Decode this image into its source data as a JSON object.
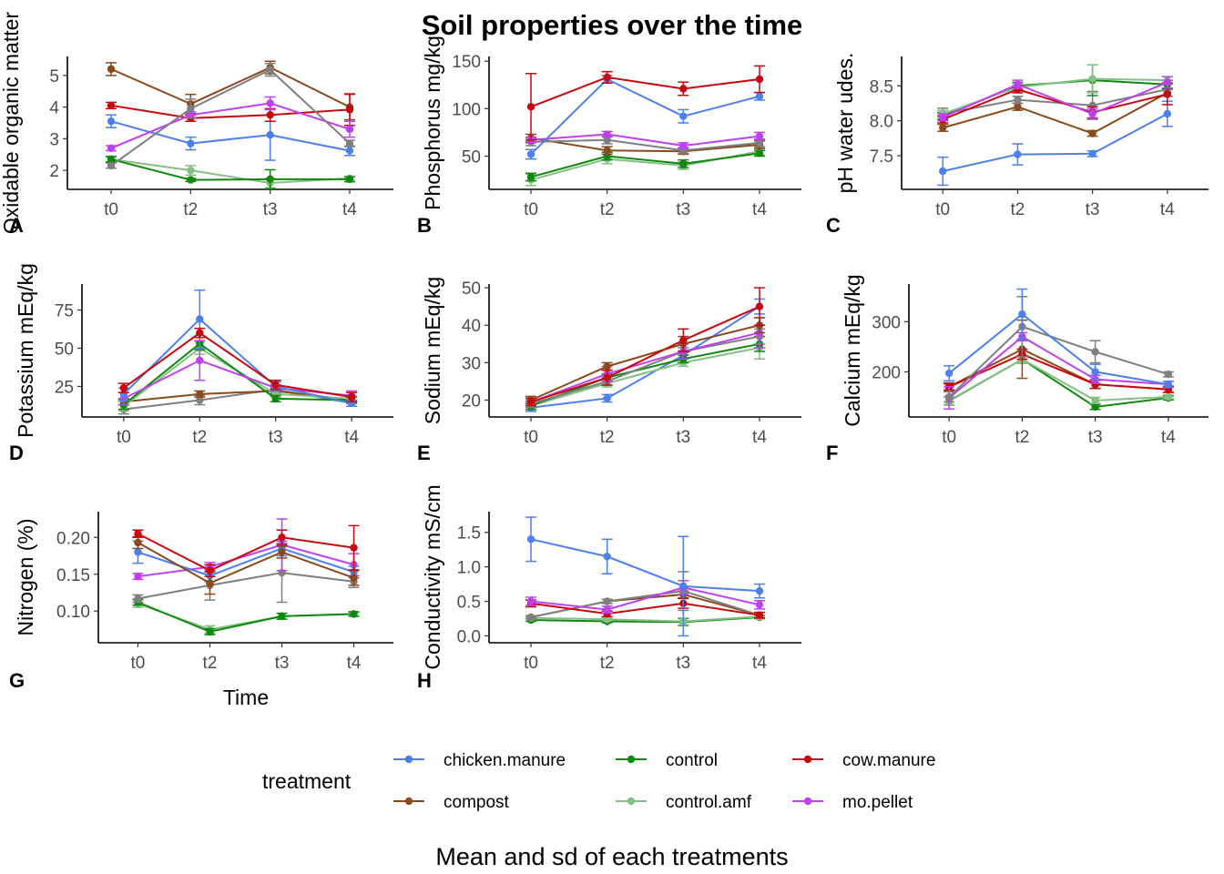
{
  "title": "Soil properties over the time",
  "caption": "Mean and sd of each treatments",
  "legend": {
    "title": "treatment",
    "entries": [
      {
        "name": "chicken.manure",
        "color": "#4c7ff0"
      },
      {
        "name": "control",
        "color": "#0f8a0f"
      },
      {
        "name": "cow.manure",
        "color": "#c8080f"
      },
      {
        "name": "compost",
        "color": "#8b4a1c"
      },
      {
        "name": "control.amf",
        "color": "#86bf86"
      },
      {
        "name": "mo.pellet",
        "color": "#bf40f2"
      }
    ]
  },
  "chart_data": [
    {
      "type": "line",
      "tag": "A",
      "ylabel": "Oxidable organic matter",
      "xlabel": "",
      "categories": [
        "t0",
        "t2",
        "t3",
        "t4"
      ],
      "ylim": [
        1.4,
        5.6
      ],
      "yticks": [
        2,
        3,
        4,
        5
      ],
      "series": [
        {
          "name": "compost",
          "values": [
            5.2,
            4.1,
            5.25,
            4.0
          ],
          "sd": [
            0.2,
            0.3,
            0.2,
            0.4
          ]
        },
        {
          "name": "control.amf",
          "values": [
            2.35,
            2.0,
            1.6,
            1.75
          ],
          "sd": [
            0.1,
            0.15,
            0.15,
            0.05
          ]
        },
        {
          "name": "control",
          "values": [
            2.35,
            1.7,
            1.72,
            1.72
          ],
          "sd": [
            0.08,
            0.05,
            0.3,
            0.08
          ]
        },
        {
          "name": "chicken.manure",
          "values": [
            3.55,
            2.85,
            3.12,
            2.62
          ],
          "sd": [
            0.2,
            0.2,
            0.8,
            0.15
          ]
        },
        {
          "name": "cow.manure",
          "values": [
            4.05,
            3.65,
            3.75,
            3.92
          ],
          "sd": [
            0.1,
            0.1,
            0.2,
            0.5
          ]
        },
        {
          "name": "mo.pellet",
          "values": [
            2.7,
            3.75,
            4.12,
            3.3
          ],
          "sd": [
            0.08,
            0.1,
            0.2,
            0.25
          ]
        },
        {
          "name": "",
          "values": [
            2.15,
            3.95,
            5.18,
            2.85
          ],
          "sd": [
            0.08,
            0.3,
            0.2,
            0.1
          ]
        }
      ]
    },
    {
      "type": "line",
      "tag": "B",
      "ylabel": "Phosphorus mg/kg",
      "xlabel": "",
      "categories": [
        "t0",
        "t2",
        "t3",
        "t4"
      ],
      "ylim": [
        15,
        155
      ],
      "yticks": [
        50,
        100,
        150
      ],
      "series": [
        {
          "name": "control.amf",
          "values": [
            25,
            47,
            40,
            55
          ],
          "sd": [
            6,
            5,
            4,
            4
          ]
        },
        {
          "name": "control",
          "values": [
            28,
            50,
            42,
            53
          ],
          "sd": [
            4,
            4,
            4,
            3
          ]
        },
        {
          "name": "compost",
          "values": [
            69,
            56,
            55,
            62
          ],
          "sd": [
            4,
            4,
            3,
            4
          ]
        },
        {
          "name": "",
          "values": [
            65,
            67,
            56,
            64
          ],
          "sd": [
            4,
            4,
            3,
            4
          ]
        },
        {
          "name": "mo.pellet",
          "values": [
            67,
            73,
            61,
            71
          ],
          "sd": [
            3,
            3,
            3,
            4
          ]
        },
        {
          "name": "chicken.manure",
          "values": [
            52,
            131,
            92,
            113
          ],
          "sd": [
            5,
            4,
            7,
            4
          ]
        },
        {
          "name": "cow.manure",
          "values": [
            102,
            133,
            121,
            131
          ],
          "sd": [
            35,
            6,
            7,
            14
          ]
        }
      ]
    },
    {
      "type": "line",
      "tag": "C",
      "ylabel": "pH water udes.",
      "xlabel": "",
      "categories": [
        "t0",
        "t2",
        "t3",
        "t4"
      ],
      "ylim": [
        7.02,
        8.92
      ],
      "yticks": [
        7.5,
        8.0,
        8.5
      ],
      "series": [
        {
          "name": "chicken.manure",
          "values": [
            7.28,
            7.52,
            7.53,
            8.1
          ],
          "sd": [
            0.2,
            0.15,
            0.04,
            0.18
          ]
        },
        {
          "name": "compost",
          "values": [
            7.9,
            8.2,
            7.82,
            8.4
          ],
          "sd": [
            0.05,
            0.05,
            0.04,
            0.05
          ]
        },
        {
          "name": "",
          "values": [
            8.1,
            8.3,
            8.22,
            8.45
          ],
          "sd": [
            0.08,
            0.05,
            0.2,
            0.1
          ]
        },
        {
          "name": "control",
          "values": [
            8.07,
            8.5,
            8.58,
            8.52
          ],
          "sd": [
            0.05,
            0.05,
            0.22,
            0.06
          ]
        },
        {
          "name": "control.amf",
          "values": [
            8.1,
            8.48,
            8.6,
            8.58
          ],
          "sd": [
            0.05,
            0.05,
            0.2,
            0.05
          ]
        },
        {
          "name": "cow.manure",
          "values": [
            8.02,
            8.45,
            8.12,
            8.38
          ],
          "sd": [
            0.05,
            0.05,
            0.08,
            0.15
          ]
        },
        {
          "name": "mo.pellet",
          "values": [
            8.05,
            8.52,
            8.1,
            8.55
          ],
          "sd": [
            0.05,
            0.06,
            0.07,
            0.08
          ]
        }
      ]
    },
    {
      "type": "line",
      "tag": "D",
      "ylabel": "Potassium mEq/kg",
      "xlabel": "",
      "categories": [
        "t0",
        "t2",
        "t3",
        "t4"
      ],
      "ylim": [
        5,
        92
      ],
      "yticks": [
        25,
        50,
        75
      ],
      "series": [
        {
          "name": "",
          "values": [
            10,
            16,
            23,
            14
          ],
          "sd": [
            3,
            3,
            2,
            2
          ]
        },
        {
          "name": "compost",
          "values": [
            15,
            20,
            22,
            16
          ],
          "sd": [
            2,
            2,
            2,
            2
          ]
        },
        {
          "name": "control.amf",
          "values": [
            12,
            50,
            20,
            17
          ],
          "sd": [
            3,
            4,
            2,
            2
          ]
        },
        {
          "name": "control",
          "values": [
            13,
            53,
            17,
            16
          ],
          "sd": [
            3,
            4,
            2,
            2
          ]
        },
        {
          "name": "mo.pellet",
          "values": [
            17,
            42,
            24,
            19
          ],
          "sd": [
            4,
            13,
            2,
            3
          ]
        },
        {
          "name": "chicken.manure",
          "values": [
            20,
            69,
            25,
            14
          ],
          "sd": [
            4,
            19,
            3,
            2
          ]
        },
        {
          "name": "cow.manure",
          "values": [
            24,
            60,
            26,
            18
          ],
          "sd": [
            3,
            3,
            3,
            3
          ]
        }
      ]
    },
    {
      "type": "line",
      "tag": "E",
      "ylabel": "Sodium mEq/kg",
      "xlabel": "",
      "categories": [
        "t0",
        "t2",
        "t3",
        "t4"
      ],
      "ylim": [
        15.5,
        51
      ],
      "yticks": [
        20,
        30,
        40,
        50
      ],
      "series": [
        {
          "name": "chicken.manure",
          "values": [
            18,
            20.5,
            32,
            45
          ],
          "sd": [
            1,
            1,
            2,
            2
          ]
        },
        {
          "name": "control.amf",
          "values": [
            18.5,
            24.5,
            30,
            34
          ],
          "sd": [
            1,
            1,
            1,
            3
          ]
        },
        {
          "name": "control",
          "values": [
            18.5,
            26,
            31,
            35
          ],
          "sd": [
            1,
            1,
            1,
            2
          ]
        },
        {
          "name": "",
          "values": [
            19,
            25,
            33,
            37
          ],
          "sd": [
            1,
            1,
            2,
            2
          ]
        },
        {
          "name": "mo.pellet",
          "values": [
            19.5,
            27,
            33,
            38
          ],
          "sd": [
            1,
            2,
            2,
            4
          ]
        },
        {
          "name": "compost",
          "values": [
            20,
            29,
            35,
            40
          ],
          "sd": [
            1,
            1,
            2,
            2
          ]
        },
        {
          "name": "cow.manure",
          "values": [
            19.5,
            26,
            36,
            45
          ],
          "sd": [
            1,
            2,
            3,
            5
          ]
        }
      ]
    },
    {
      "type": "line",
      "tag": "F",
      "ylabel": "Calcium mEq/kg",
      "xlabel": "",
      "categories": [
        "t0",
        "t2",
        "t3",
        "t4"
      ],
      "ylim": [
        110,
        375
      ],
      "yticks": [
        200,
        300
      ],
      "series": [
        {
          "name": "control",
          "values": [
            142,
            225,
            130,
            148
          ],
          "sd": [
            8,
            8,
            5,
            4
          ]
        },
        {
          "name": "control.amf",
          "values": [
            143,
            225,
            143,
            150
          ],
          "sd": [
            8,
            8,
            6,
            4
          ]
        },
        {
          "name": "compost",
          "values": [
            170,
            245,
            175,
            165
          ],
          "sd": [
            8,
            58,
            8,
            6
          ]
        },
        {
          "name": "cow.manure",
          "values": [
            170,
            235,
            175,
            165
          ],
          "sd": [
            6,
            10,
            8,
            6
          ]
        },
        {
          "name": "mo.pellet",
          "values": [
            148,
            270,
            185,
            175
          ],
          "sd": [
            22,
            8,
            8,
            6
          ]
        },
        {
          "name": "",
          "values": [
            150,
            290,
            240,
            195
          ],
          "sd": [
            10,
            60,
            22,
            5
          ]
        },
        {
          "name": "chicken.manure",
          "values": [
            197,
            315,
            200,
            175
          ],
          "sd": [
            15,
            50,
            15,
            6
          ]
        }
      ]
    },
    {
      "type": "line",
      "tag": "G",
      "ylabel": "Nitrogen (%)",
      "xlabel": "Time",
      "categories": [
        "t0",
        "t2",
        "t3",
        "t4"
      ],
      "ylim": [
        0.057,
        0.235
      ],
      "yticks": [
        0.1,
        0.15,
        0.2
      ],
      "series": [
        {
          "name": "control.amf",
          "values": [
            0.11,
            0.075,
            0.093,
            0.096
          ],
          "sd": [
            0.005,
            0.005,
            0.004,
            0.003
          ]
        },
        {
          "name": "control",
          "values": [
            0.112,
            0.072,
            0.093,
            0.096
          ],
          "sd": [
            0.004,
            0.004,
            0.004,
            0.003
          ]
        },
        {
          "name": "",
          "values": [
            0.117,
            0.135,
            0.152,
            0.14
          ],
          "sd": [
            0.005,
            0.02,
            0.04,
            0.008
          ]
        },
        {
          "name": "mo.pellet",
          "values": [
            0.147,
            0.16,
            0.19,
            0.163
          ],
          "sd": [
            0.004,
            0.006,
            0.035,
            0.015
          ]
        },
        {
          "name": "chicken.manure",
          "values": [
            0.18,
            0.148,
            0.185,
            0.153
          ],
          "sd": [
            0.015,
            0.008,
            0.01,
            0.008
          ]
        },
        {
          "name": "compost",
          "values": [
            0.193,
            0.138,
            0.18,
            0.145
          ],
          "sd": [
            0.008,
            0.015,
            0.008,
            0.01
          ]
        },
        {
          "name": "cow.manure",
          "values": [
            0.205,
            0.155,
            0.2,
            0.186
          ],
          "sd": [
            0.005,
            0.008,
            0.01,
            0.03
          ]
        }
      ]
    },
    {
      "type": "line",
      "tag": "H",
      "ylabel": "Conductivity mS/cm",
      "xlabel": "",
      "categories": [
        "t0",
        "t2",
        "t3",
        "t4"
      ],
      "ylim": [
        -0.1,
        1.8
      ],
      "yticks": [
        0.0,
        0.5,
        1.0,
        1.5
      ],
      "series": [
        {
          "name": "control",
          "values": [
            0.23,
            0.21,
            0.2,
            0.27
          ],
          "sd": [
            0.02,
            0.02,
            0.05,
            0.02
          ]
        },
        {
          "name": "control.amf",
          "values": [
            0.26,
            0.24,
            0.21,
            0.28
          ],
          "sd": [
            0.02,
            0.02,
            0.05,
            0.02
          ]
        },
        {
          "name": "compost",
          "values": [
            0.27,
            0.5,
            0.6,
            0.3
          ],
          "sd": [
            0.02,
            0.03,
            0.05,
            0.04
          ]
        },
        {
          "name": "",
          "values": [
            0.27,
            0.5,
            0.65,
            0.3
          ],
          "sd": [
            0.02,
            0.03,
            0.28,
            0.04
          ]
        },
        {
          "name": "cow.manure",
          "values": [
            0.47,
            0.32,
            0.47,
            0.3
          ],
          "sd": [
            0.05,
            0.04,
            0.07,
            0.04
          ]
        },
        {
          "name": "mo.pellet",
          "values": [
            0.5,
            0.38,
            0.7,
            0.45
          ],
          "sd": [
            0.06,
            0.05,
            0.1,
            0.06
          ]
        },
        {
          "name": "chicken.manure",
          "values": [
            1.4,
            1.15,
            0.72,
            0.65
          ],
          "sd": [
            0.32,
            0.25,
            0.72,
            0.1
          ]
        }
      ]
    }
  ]
}
